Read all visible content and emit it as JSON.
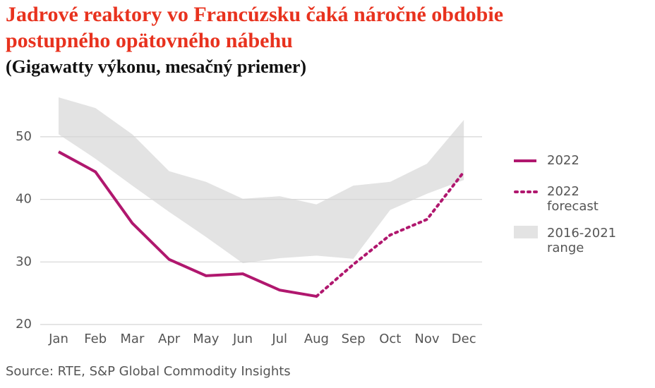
{
  "chart_data": {
    "type": "line",
    "title": "Jadrové reaktory vo Francúzsku čaká náročné obdobie postupného opätovného nábehu",
    "subtitle": "(Gigawatty výkonu, mesačný priemer)",
    "source": "Source: RTE, S&P Global Commodity Insights",
    "categories": [
      "Jan",
      "Feb",
      "Mar",
      "Apr",
      "May",
      "Jun",
      "Jul",
      "Aug",
      "Sep",
      "Oct",
      "Nov",
      "Dec"
    ],
    "series": [
      {
        "name": "2022",
        "color": "#b0176e",
        "dashed": false,
        "values": [
          47.6,
          44.4,
          36.2,
          30.4,
          27.8,
          28.1,
          25.5,
          24.5,
          null,
          null,
          null,
          null
        ]
      },
      {
        "name": "2022 forecast",
        "color": "#b0176e",
        "dashed": true,
        "values": [
          null,
          null,
          null,
          null,
          null,
          null,
          null,
          24.5,
          29.6,
          34.3,
          36.8,
          44.4
        ]
      }
    ],
    "band": {
      "name": "2016-2021 range",
      "color": "#e3e3e3",
      "high": [
        56.3,
        54.6,
        50.4,
        44.5,
        42.8,
        40.1,
        40.5,
        39.2,
        42.2,
        42.8,
        45.7,
        52.7
      ],
      "low": [
        50.4,
        46.5,
        42.2,
        38.0,
        34.0,
        29.8,
        30.6,
        31.0,
        30.5,
        38.3,
        40.9,
        43.1
      ]
    },
    "ylim": [
      20,
      57
    ],
    "yticks": [
      20,
      30,
      40,
      50
    ],
    "grid": true
  }
}
